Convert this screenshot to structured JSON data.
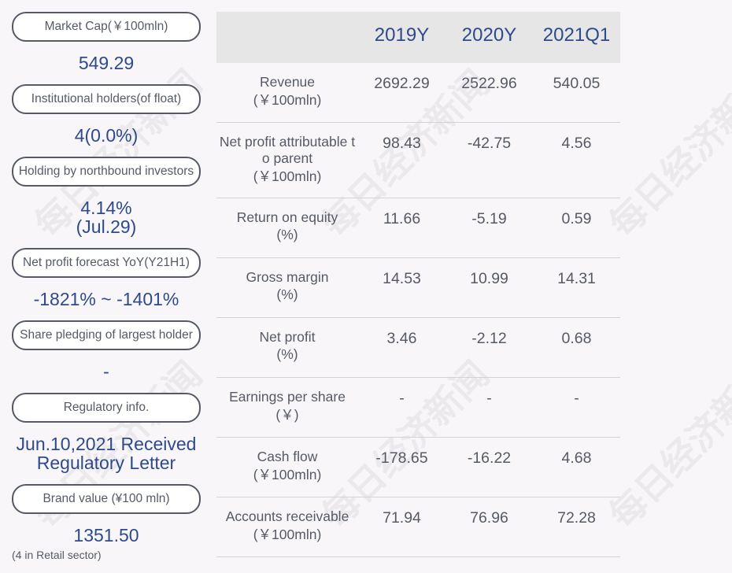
{
  "left_panel": [
    {
      "label": "Market Cap(￥100mln)",
      "value": "549.29"
    },
    {
      "label": "Institutional holders(of float)",
      "value": "4(0.0%)"
    },
    {
      "label": "Holding by northbound investors",
      "value_line1": "4.14%",
      "value_line2": "(Jul.29)"
    },
    {
      "label": "Net profit forecast YoY(Y21H1)",
      "value": "-1821% ~ -1401%"
    },
    {
      "label": "Share pledging of largest holder",
      "value": "-"
    },
    {
      "label": "Regulatory info.",
      "value_line1": "Jun.10,2021 Received",
      "value_line2": "Regulatory Letter"
    },
    {
      "label": "Brand value (¥100 mln)",
      "value": "1351.50",
      "note": "(4 in Retail sector)"
    }
  ],
  "table": {
    "headers": [
      "2019Y",
      "2020Y",
      "2021Q1"
    ],
    "rows": [
      {
        "metric_line1": "Revenue",
        "metric_line2": "(￥100mln)",
        "values": [
          "2692.29",
          "2522.96",
          "540.05"
        ]
      },
      {
        "metric_line1": "Net profit attributable t",
        "metric_line1b": "o parent",
        "metric_line2": "(￥100mln)",
        "values": [
          "98.43",
          "-42.75",
          "4.56"
        ]
      },
      {
        "metric_line1": "Return on equity",
        "metric_line2": "(%)",
        "values": [
          "11.66",
          "-5.19",
          "0.59"
        ]
      },
      {
        "metric_line1": "Gross margin",
        "metric_line2": "(%)",
        "values": [
          "14.53",
          "10.99",
          "14.31"
        ]
      },
      {
        "metric_line1": "Net profit",
        "metric_line2": "(%)",
        "values": [
          "3.46",
          "-2.12",
          "0.68"
        ]
      },
      {
        "metric_line1": "Earnings per share",
        "metric_line2": "(￥)",
        "values": [
          "-",
          "-",
          "-"
        ]
      },
      {
        "metric_line1": "Cash flow",
        "metric_line2": "(￥100mln)",
        "values": [
          "-178.65",
          "-16.22",
          "4.68"
        ]
      },
      {
        "metric_line1": "Accounts receivable",
        "metric_line2": "(￥100mln)",
        "values": [
          "71.94",
          "76.96",
          "72.28"
        ]
      }
    ]
  },
  "watermark": "每日经济新闻"
}
